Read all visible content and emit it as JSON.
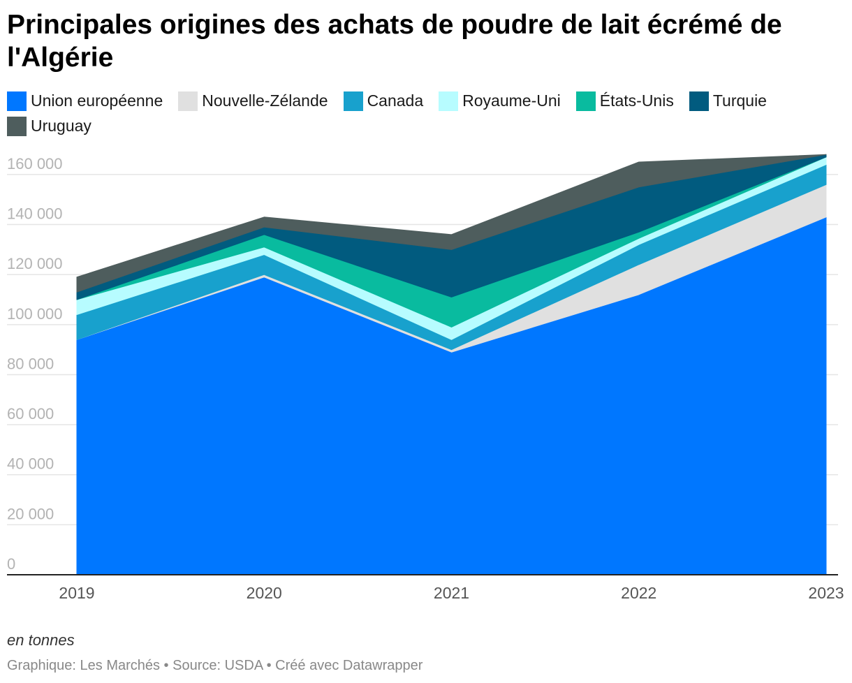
{
  "title": "Principales origines des achats de poudre de lait écrémé de l'Algérie",
  "note": "en tonnes",
  "footer": "Graphique: Les Marchés • Source: USDA • Créé avec Datawrapper",
  "chart_data": {
    "type": "area",
    "stacked": true,
    "x": [
      "2019",
      "2020",
      "2021",
      "2022",
      "2023"
    ],
    "ylim": [
      0,
      165000
    ],
    "yticks": [
      0,
      20000,
      40000,
      60000,
      80000,
      100000,
      120000,
      140000,
      160000
    ],
    "ytick_labels": [
      "0",
      "20 000",
      "40 000",
      "60 000",
      "80 000",
      "100 000",
      "120 000",
      "140 000",
      "160 000"
    ],
    "grid": true,
    "legend_position": "top",
    "series": [
      {
        "name": "Union européenne",
        "color": "#0077ff",
        "values": [
          94000,
          119000,
          89000,
          112000,
          143000
        ]
      },
      {
        "name": "Nouvelle-Zélande",
        "color": "#e0e0e0",
        "values": [
          0,
          1000,
          1000,
          12000,
          13000
        ]
      },
      {
        "name": "Canada",
        "color": "#18a1cd",
        "values": [
          10000,
          8000,
          4000,
          8000,
          8000
        ]
      },
      {
        "name": "Royaume-Uni",
        "color": "#b7fcff",
        "values": [
          6000,
          3000,
          5000,
          2500,
          3000
        ]
      },
      {
        "name": "États-Unis",
        "color": "#09bb9f",
        "values": [
          0,
          5000,
          12000,
          2500,
          0
        ]
      },
      {
        "name": "Turquie",
        "color": "#015b7f",
        "values": [
          3000,
          3000,
          19000,
          18000,
          1000
        ]
      },
      {
        "name": "Uruguay",
        "color": "#4e5d5d",
        "values": [
          6000,
          4000,
          6000,
          10000,
          0
        ]
      }
    ]
  }
}
